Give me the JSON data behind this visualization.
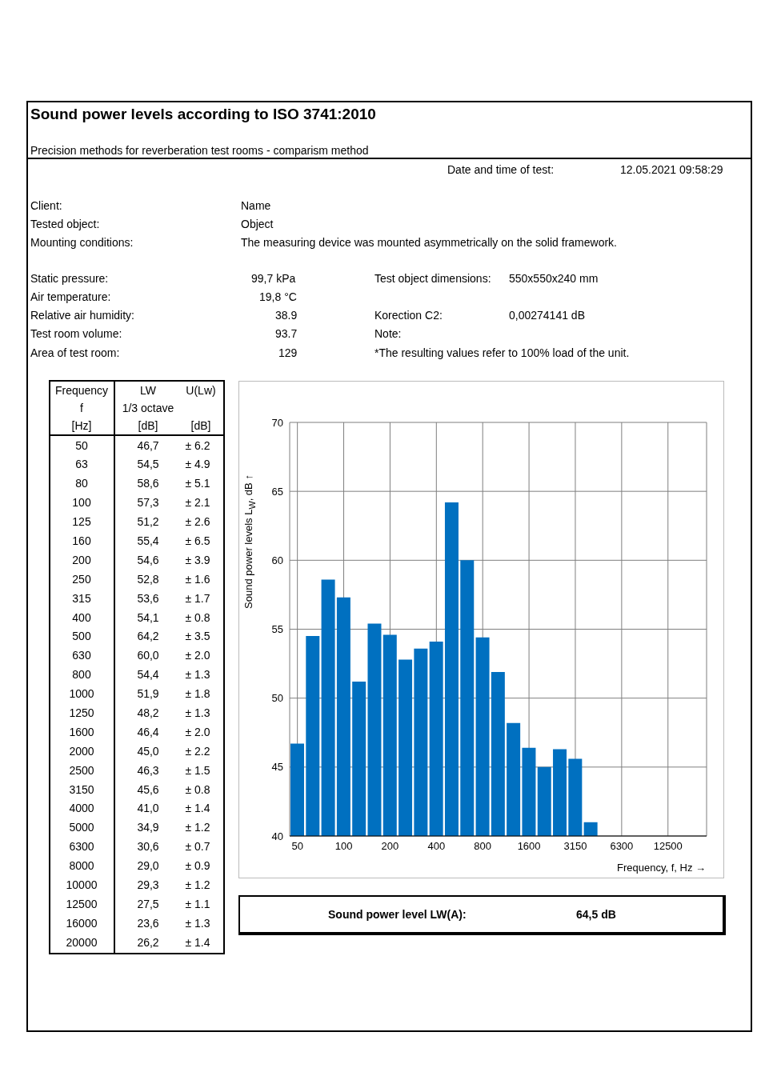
{
  "chart_data": [
    {
      "type": "other",
      "title": "Sound power levels according to ISO 3741:2010",
      "subtitle": "Precision methods for reverberation test rooms - comparism method",
      "annotations": [
        "Date and time of test:",
        "12.05.2021 09:58:29",
        "Client:",
        "Name",
        "Tested object:",
        "Object",
        "Mounting conditions:",
        "The measuring device was mounted asymmetrically on the solid framework.",
        "Static pressure:",
        "99,7 kPa",
        "Test object dimensions:",
        "550x550x240 mm",
        "Air temperature:",
        "19,8 °C",
        "Relative air humidity:",
        "38.9",
        "Korection C2:",
        "0,00274141 dB",
        "Test room volume:",
        "93.7",
        "Note:",
        "Area of test room:",
        "129",
        "*The resulting values refer to 100% load of the unit.",
        "Sound power level LW(A):",
        "64,5 dB"
      ]
    },
    {
      "type": "other",
      "annotations": [
        "Frequency",
        "f",
        "[Hz]",
        "LW",
        "1/3 octave",
        "[dB]",
        "U(Lw)",
        "[dB]",
        "50",
        "46,7",
        "± 6.2",
        "63",
        "54,5",
        "± 4.9",
        "80",
        "58,6",
        "± 5.1",
        "100",
        "57,3",
        "± 2.1",
        "125",
        "51,2",
        "± 2.6",
        "160",
        "55,4",
        "± 6.5",
        "200",
        "54,6",
        "± 3.9",
        "250",
        "52,8",
        "± 1.6",
        "315",
        "53,6",
        "± 1.7",
        "400",
        "54,1",
        "± 0.8",
        "500",
        "64,2",
        "± 3.5",
        "630",
        "60,0",
        "± 2.0",
        "800",
        "54,4",
        "± 1.3",
        "1000",
        "51,9",
        "± 1.8",
        "1250",
        "48,2",
        "± 1.3",
        "1600",
        "46,4",
        "± 2.0",
        "2000",
        "45,0",
        "± 2.2",
        "2500",
        "46,3",
        "± 1.5",
        "3150",
        "45,6",
        "± 0.8",
        "4000",
        "41,0",
        "± 1.4",
        "5000",
        "34,9",
        "± 1.2",
        "6300",
        "30,6",
        "± 0.7",
        "8000",
        "29,0",
        "± 0.9",
        "10000",
        "29,3",
        "± 1.2",
        "12500",
        "27,5",
        "± 1.1",
        "16000",
        "23,6",
        "± 1.3",
        "20000",
        "26,2",
        "± 1.4"
      ]
    },
    {
      "type": "bar",
      "xlabel": "Frequency, f, Hz →",
      "ylabel": "Sound power levels L$_{W}$, dB ↑",
      "categories": [
        "50",
        null,
        null,
        "100",
        null,
        null,
        "200",
        null,
        null,
        "400",
        null,
        null,
        "800",
        null,
        null,
        "1600",
        null,
        null,
        "3150",
        null,
        null,
        "6300",
        null,
        null,
        "12500",
        null,
        null
      ],
      "values": [
        46.7,
        54.5,
        58.6,
        57.3,
        51.2,
        55.4,
        54.6,
        52.8,
        53.6,
        54.1,
        64.2,
        60.0,
        54.4,
        51.9,
        48.2,
        46.4,
        45.0,
        46.3,
        45.6,
        41.0,
        null,
        null,
        null,
        null,
        null,
        null,
        null
      ],
      "color": "#0070c0",
      "ylim": [
        40,
        70
      ],
      "yticks": [
        40,
        45,
        50,
        55,
        60,
        65,
        70
      ],
      "grid": true
    }
  ]
}
